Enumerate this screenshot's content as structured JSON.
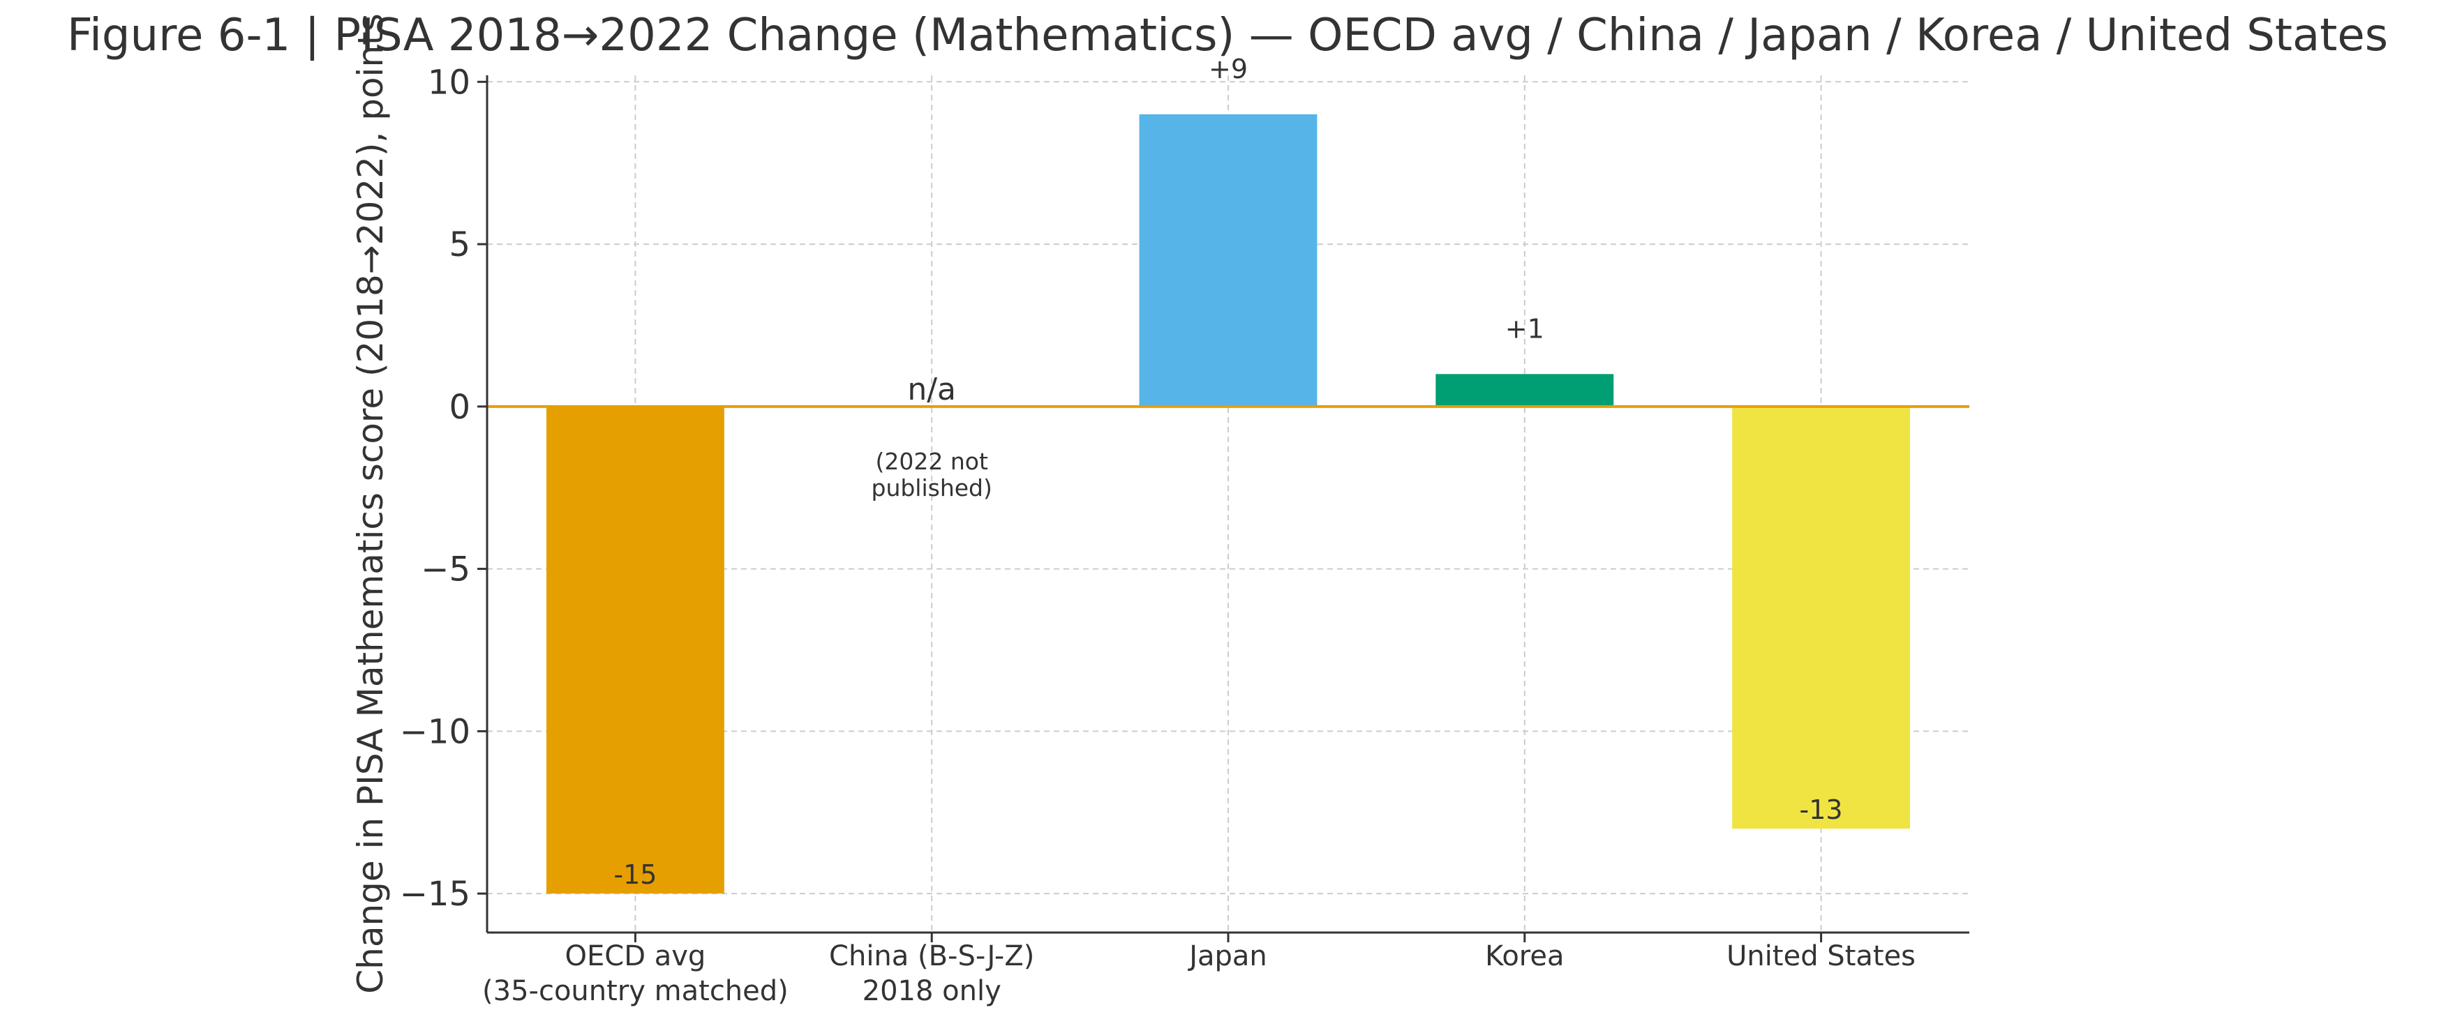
{
  "chart_data": {
    "type": "bar",
    "title": "Figure 6-1 | PISA 2018→2022 Change (Mathematics) — OECD avg / China / Japan / Korea / United States",
    "xlabel": "",
    "ylabel": "Change in PISA Mathematics score (2018→2022), points",
    "ylim": [
      -16.2,
      10.2
    ],
    "yticks": [
      -15,
      -10,
      -5,
      0,
      5,
      10
    ],
    "ytick_labels": [
      "−15",
      "−10",
      "−5",
      "0",
      "5",
      "10"
    ],
    "grid": true,
    "categories": [
      [
        "OECD avg",
        "(35-country matched)"
      ],
      [
        "China (B-S-J-Z)",
        "2018 only"
      ],
      [
        "Japan"
      ],
      [
        "Korea"
      ],
      [
        "United States"
      ]
    ],
    "values": [
      -15,
      null,
      9,
      1,
      -13
    ],
    "value_labels": [
      "-15",
      "n/a",
      "+9",
      "+1",
      "-13"
    ],
    "bar_colors": [
      "#E69F00",
      null,
      "#56B4E9",
      "#009E73",
      "#F0E442"
    ],
    "zero_line_color": "#E69F00",
    "annotations": [
      {
        "category_index": 1,
        "lines": [
          "(2022 not",
          "published)"
        ]
      }
    ]
  }
}
